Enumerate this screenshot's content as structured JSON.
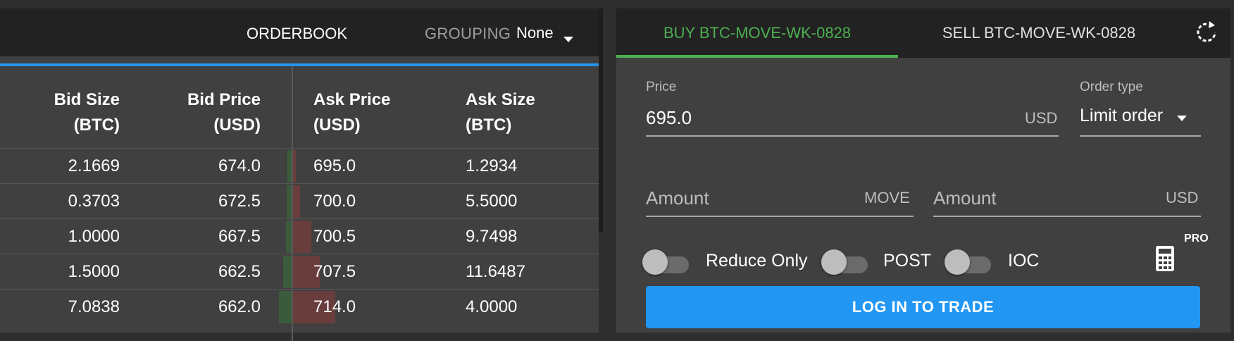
{
  "orderbook": {
    "title": "ORDERBOOK",
    "grouping_label": "GROUPING",
    "grouping_value": "None",
    "columns": {
      "bid_size": [
        "Bid Size",
        "(BTC)"
      ],
      "bid_price": [
        "Bid Price",
        "(USD)"
      ],
      "ask_price": [
        "Ask Price",
        "(USD)"
      ],
      "ask_size": [
        "Ask Size",
        "(BTC)"
      ]
    },
    "rows": [
      {
        "bid_size": "2.1669",
        "bid_price": "674.0",
        "ask_price": "695.0",
        "ask_size": "1.2934"
      },
      {
        "bid_size": "0.3703",
        "bid_price": "672.5",
        "ask_price": "700.0",
        "ask_size": "5.5000"
      },
      {
        "bid_size": "1.0000",
        "bid_price": "667.5",
        "ask_price": "700.5",
        "ask_size": "9.7498"
      },
      {
        "bid_size": "1.5000",
        "bid_price": "662.5",
        "ask_price": "707.5",
        "ask_size": "11.6487"
      },
      {
        "bid_size": "7.0838",
        "bid_price": "662.0",
        "ask_price": "714.0",
        "ask_size": "4.0000"
      }
    ]
  },
  "trade": {
    "tabs": {
      "buy": "BUY BTC-MOVE-WK-0828",
      "sell": "SELL BTC-MOVE-WK-0828"
    },
    "price": {
      "label": "Price",
      "value": "695.0",
      "suffix": "USD"
    },
    "order_type": {
      "label": "Order type",
      "value": "Limit order"
    },
    "amount_move": {
      "placeholder": "Amount",
      "suffix": "MOVE"
    },
    "amount_usd": {
      "placeholder": "Amount",
      "suffix": "USD"
    },
    "toggles": [
      "Reduce Only",
      "POST",
      "IOC"
    ],
    "pro_label": "PRO",
    "login_button": "LOG IN TO TRADE"
  },
  "colors": {
    "accent_blue": "#2196f3",
    "buy_green": "#4caf50",
    "ask_red": "#6a3d3d",
    "bid_green": "#3c5b3c"
  }
}
